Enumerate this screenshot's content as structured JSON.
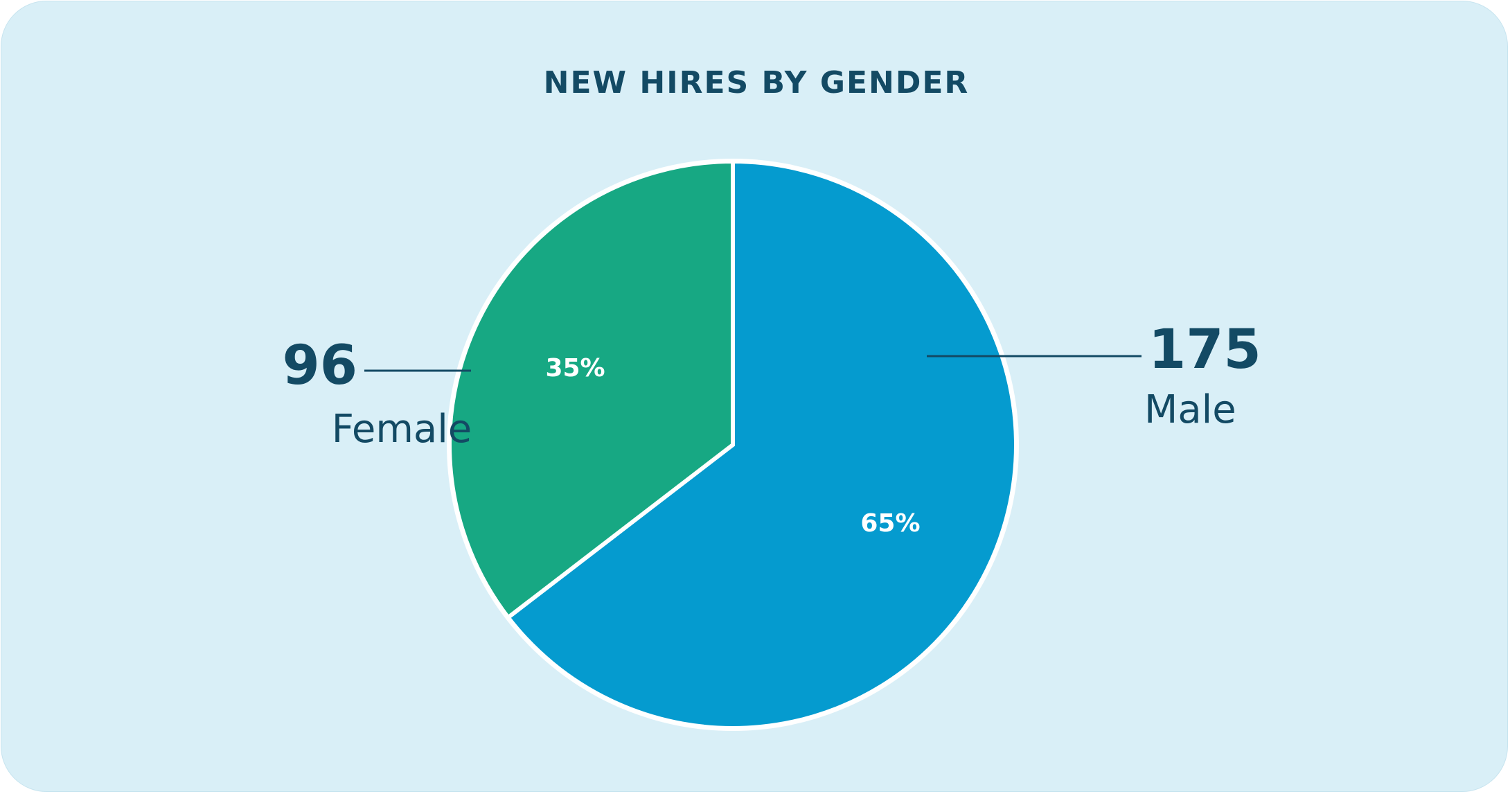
{
  "chart_data": {
    "type": "pie",
    "title": "NEW HIRES BY GENDER",
    "slices": [
      {
        "label": "Male",
        "value": 175,
        "percent_label": "65%",
        "color": "#059bcf"
      },
      {
        "label": "Female",
        "value": 96,
        "percent_label": "35%",
        "color": "#17a883"
      }
    ],
    "start": "12 o'clock",
    "direction": "clockwise",
    "separator_color": "#ffffff",
    "callout_line_color": "#134a64"
  }
}
